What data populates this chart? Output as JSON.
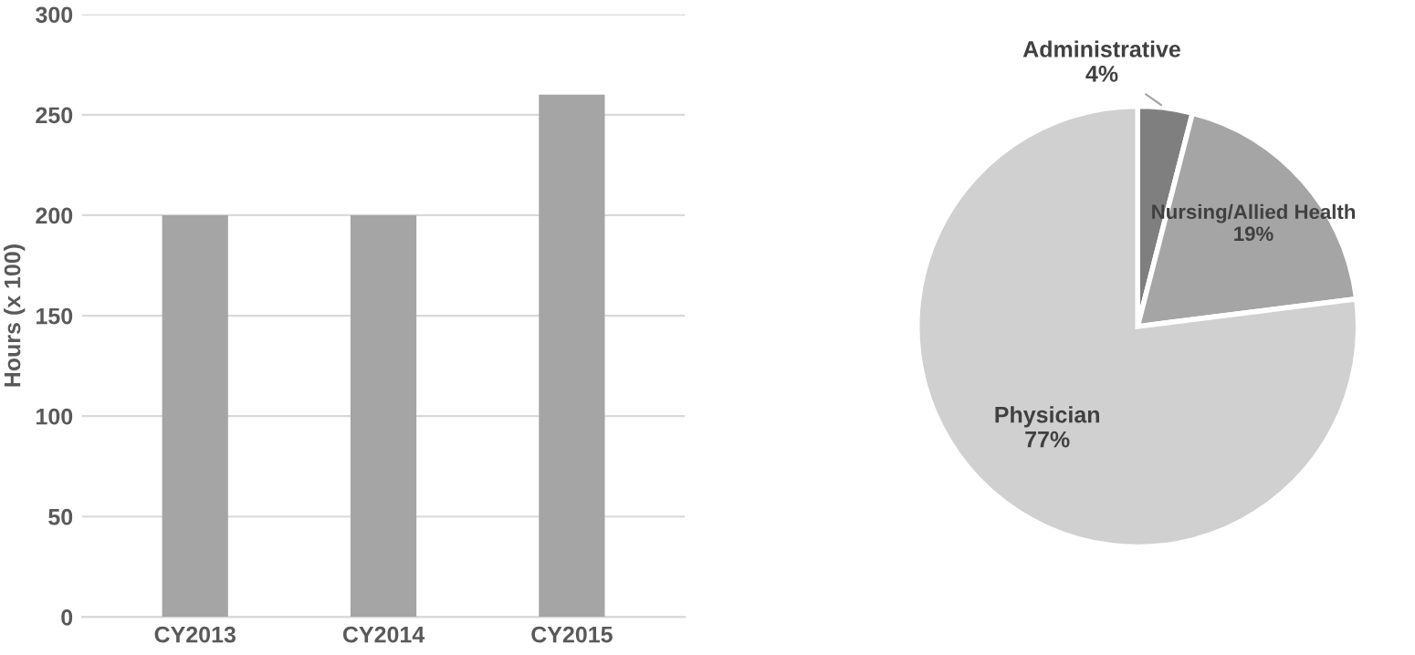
{
  "chart_data": [
    {
      "type": "bar",
      "ylabel": "Hours (x 100)",
      "categories": [
        "CY2013",
        "CY2014",
        "CY2015"
      ],
      "values": [
        200,
        200,
        260
      ],
      "color": "#a5a5a5",
      "ylim": [
        0,
        300
      ],
      "yticks": [
        0,
        50,
        100,
        150,
        200,
        250,
        300
      ],
      "grid": "y",
      "legend": false
    },
    {
      "type": "pie",
      "categories": [
        "Administrative",
        "Nursing/Allied Health",
        "Physician"
      ],
      "values": [
        4,
        19,
        77
      ],
      "colors": [
        "#7f7f7f",
        "#a5a5a5",
        "#d0d0d0"
      ],
      "value_labels": [
        "4%",
        "19%",
        "77%"
      ],
      "legend": false
    }
  ]
}
